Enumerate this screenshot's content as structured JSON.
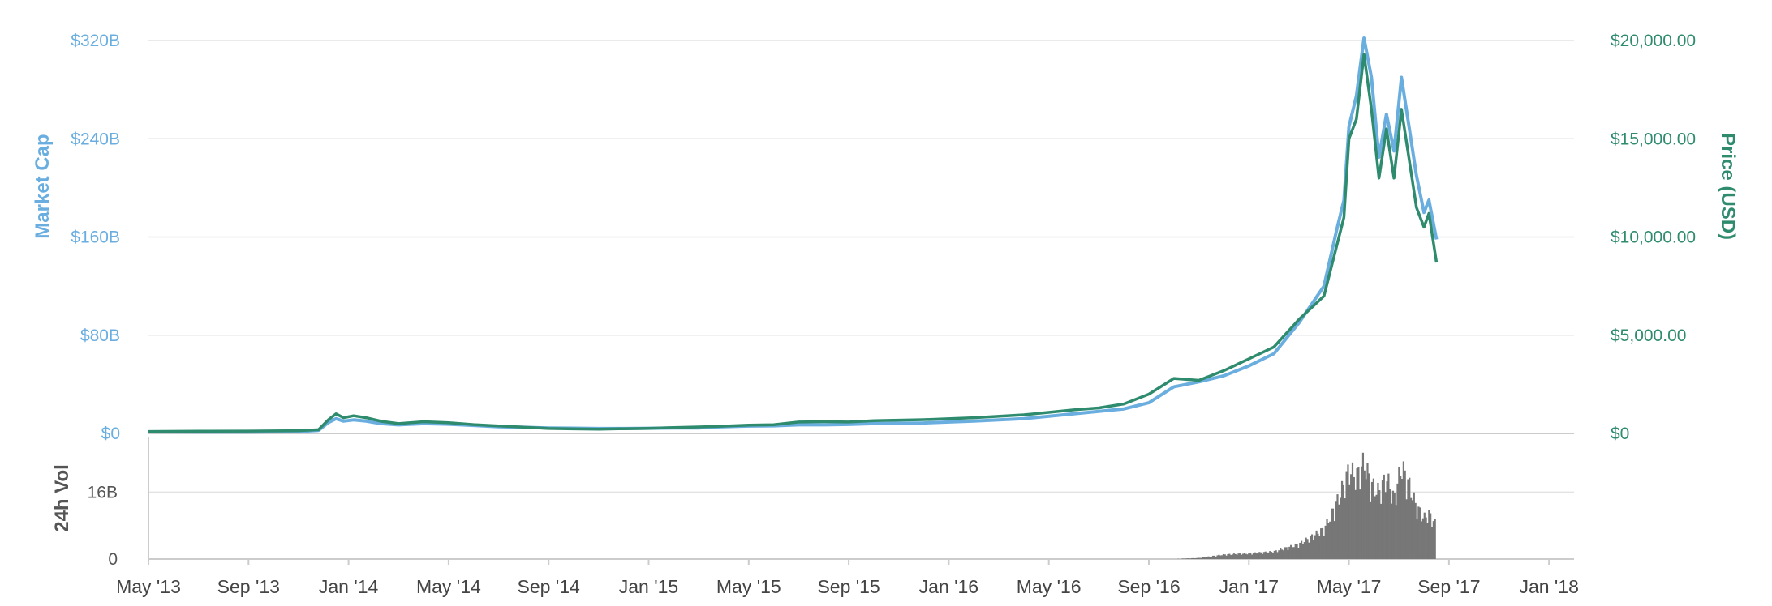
{
  "chart_data": {
    "type": "line",
    "xlabel": "",
    "x_ticks": [
      "May '13",
      "Sep '13",
      "Jan '14",
      "May '14",
      "Sep '14",
      "Jan '15",
      "May '15",
      "Sep '15",
      "Jan '16",
      "May '16",
      "Sep '16",
      "Jan '17",
      "May '17",
      "Sep '17",
      "Jan '18"
    ],
    "y_left": {
      "label": "Market Cap",
      "ticks": [
        "$0",
        "$80B",
        "$160B",
        "$240B",
        "$320B"
      ],
      "ylim": [
        0,
        320
      ]
    },
    "y_right": {
      "label": "Price (USD)",
      "ticks": [
        "$0",
        "$5,000.00",
        "$10,000.00",
        "$15,000.00",
        "$20,000.00"
      ],
      "ylim": [
        0,
        20000
      ]
    },
    "volume_axis": {
      "label": "24h Vol",
      "ticks": [
        "0",
        "16B"
      ]
    },
    "grid": true,
    "colors": {
      "market_cap": "#6aaee0",
      "price": "#2e8b6e",
      "volume": "#777777"
    },
    "market_cap_points": [
      [
        0,
        1.3
      ],
      [
        2,
        1.2
      ],
      [
        4,
        1.2
      ],
      [
        6,
        1.5
      ],
      [
        6.8,
        2.5
      ],
      [
        7.2,
        9
      ],
      [
        7.5,
        12
      ],
      [
        7.8,
        10
      ],
      [
        8.2,
        11
      ],
      [
        8.7,
        10
      ],
      [
        9.3,
        8
      ],
      [
        10,
        7
      ],
      [
        11,
        8
      ],
      [
        12,
        7.5
      ],
      [
        13,
        6.5
      ],
      [
        14,
        5.5
      ],
      [
        15,
        5
      ],
      [
        16,
        4.5
      ],
      [
        17,
        4.3
      ],
      [
        18,
        4
      ],
      [
        19,
        4
      ],
      [
        20,
        4.2
      ],
      [
        21,
        4.5
      ],
      [
        22,
        4.5
      ],
      [
        23,
        5.5
      ],
      [
        24,
        6
      ],
      [
        25,
        6.2
      ],
      [
        26,
        7
      ],
      [
        27,
        7
      ],
      [
        28,
        7.3
      ],
      [
        29,
        8
      ],
      [
        31,
        8.5
      ],
      [
        33,
        10
      ],
      [
        35,
        12
      ],
      [
        37,
        16
      ],
      [
        38,
        18
      ],
      [
        39,
        20
      ],
      [
        40,
        25
      ],
      [
        41,
        38
      ],
      [
        42,
        42
      ],
      [
        43,
        47
      ],
      [
        44,
        55
      ],
      [
        45,
        65
      ],
      [
        46,
        90
      ],
      [
        47,
        120
      ],
      [
        47.5,
        165
      ],
      [
        47.8,
        190
      ],
      [
        48,
        250
      ],
      [
        48.3,
        275
      ],
      [
        48.6,
        322
      ],
      [
        48.9,
        290
      ],
      [
        49.2,
        225
      ],
      [
        49.5,
        260
      ],
      [
        49.8,
        230
      ],
      [
        50.1,
        290
      ],
      [
        50.4,
        250
      ],
      [
        50.7,
        210
      ],
      [
        51,
        180
      ],
      [
        51.2,
        190
      ],
      [
        51.5,
        158
      ]
    ],
    "price_points": [
      [
        0,
        100
      ],
      [
        2,
        110
      ],
      [
        4,
        120
      ],
      [
        6,
        140
      ],
      [
        6.8,
        190
      ],
      [
        7.2,
        700
      ],
      [
        7.5,
        1000
      ],
      [
        7.8,
        800
      ],
      [
        8.2,
        900
      ],
      [
        8.7,
        800
      ],
      [
        9.3,
        620
      ],
      [
        10,
        500
      ],
      [
        11,
        600
      ],
      [
        12,
        550
      ],
      [
        13,
        450
      ],
      [
        14,
        380
      ],
      [
        15,
        320
      ],
      [
        16,
        250
      ],
      [
        17,
        230
      ],
      [
        18,
        220
      ],
      [
        19,
        240
      ],
      [
        20,
        260
      ],
      [
        21,
        300
      ],
      [
        22,
        330
      ],
      [
        23,
        370
      ],
      [
        24,
        420
      ],
      [
        25,
        440
      ],
      [
        26,
        580
      ],
      [
        27,
        600
      ],
      [
        28,
        580
      ],
      [
        29,
        650
      ],
      [
        31,
        700
      ],
      [
        33,
        800
      ],
      [
        35,
        950
      ],
      [
        37,
        1200
      ],
      [
        38,
        1300
      ],
      [
        39,
        1500
      ],
      [
        40,
        2000
      ],
      [
        41,
        2800
      ],
      [
        42,
        2700
      ],
      [
        43,
        3200
      ],
      [
        44,
        3800
      ],
      [
        45,
        4400
      ],
      [
        46,
        5800
      ],
      [
        47,
        7000
      ],
      [
        47.5,
        9500
      ],
      [
        47.8,
        11000
      ],
      [
        48,
        15000
      ],
      [
        48.3,
        16000
      ],
      [
        48.6,
        19300
      ],
      [
        48.9,
        16500
      ],
      [
        49.2,
        13000
      ],
      [
        49.5,
        15500
      ],
      [
        49.8,
        13000
      ],
      [
        50.1,
        16500
      ],
      [
        50.4,
        14000
      ],
      [
        50.7,
        11500
      ],
      [
        51,
        10500
      ],
      [
        51.2,
        11200
      ],
      [
        51.5,
        8700
      ]
    ],
    "volume_points": [
      [
        41,
        0
      ],
      [
        42,
        0.3
      ],
      [
        43,
        1.2
      ],
      [
        44,
        1.5
      ],
      [
        45,
        2
      ],
      [
        46,
        4
      ],
      [
        47,
        8
      ],
      [
        47.5,
        15
      ],
      [
        47.8,
        20
      ],
      [
        48,
        24
      ],
      [
        48.3,
        22
      ],
      [
        48.6,
        26
      ],
      [
        48.9,
        20
      ],
      [
        49.2,
        18
      ],
      [
        49.5,
        22
      ],
      [
        49.8,
        16
      ],
      [
        50.1,
        25
      ],
      [
        50.4,
        20
      ],
      [
        50.7,
        14
      ],
      [
        51,
        11
      ],
      [
        51.2,
        12
      ],
      [
        51.5,
        9
      ]
    ]
  }
}
